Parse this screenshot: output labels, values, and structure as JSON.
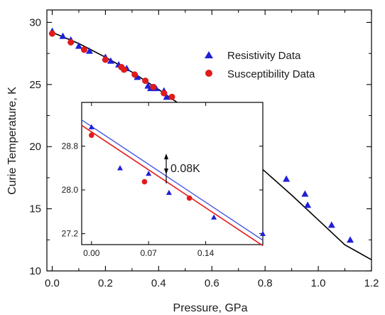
{
  "chart_data": {
    "type": "scatter",
    "xlabel": "Pressure, GPa",
    "ylabel": "Curie Temperature, K",
    "xlim": [
      -0.02,
      1.2
    ],
    "ylim": [
      10,
      31
    ],
    "x_ticks": [
      "0.0",
      "0.2",
      "0.4",
      "0.6",
      "0.8",
      "1.0",
      "1.2"
    ],
    "y_ticks": [
      "10",
      "15",
      "20",
      "25",
      "30"
    ],
    "legend_position": "top-right",
    "colors": {
      "resistivity": "#1f1fd6",
      "susceptibility": "#e01b1b",
      "fit": "#000000",
      "inset_blue": "#3a4fe0",
      "inset_red": "#e01b1b"
    },
    "series": [
      {
        "name": "Resistivity Data",
        "marker": "triangle",
        "color": "#1f1fd6",
        "points": [
          [
            0.0,
            29.3
          ],
          [
            0.04,
            28.9
          ],
          [
            0.07,
            28.6
          ],
          [
            0.1,
            28.1
          ],
          [
            0.14,
            27.7
          ],
          [
            0.2,
            27.2
          ],
          [
            0.22,
            26.9
          ],
          [
            0.25,
            26.6
          ],
          [
            0.28,
            26.3
          ],
          [
            0.32,
            25.6
          ],
          [
            0.36,
            24.9
          ],
          [
            0.37,
            24.7
          ],
          [
            0.39,
            24.7
          ],
          [
            0.42,
            24.5
          ],
          [
            0.43,
            24.0
          ],
          [
            0.48,
            23.2
          ],
          [
            0.52,
            23.0
          ],
          [
            0.53,
            22.6
          ],
          [
            0.63,
            21.3
          ],
          [
            0.7,
            20.3
          ],
          [
            0.88,
            17.4
          ],
          [
            0.95,
            16.2
          ],
          [
            0.96,
            15.3
          ],
          [
            1.05,
            13.7
          ],
          [
            1.12,
            12.5
          ]
        ]
      },
      {
        "name": "Susceptibility Data",
        "marker": "circle",
        "color": "#e01b1b",
        "points": [
          [
            0.0,
            29.1
          ],
          [
            0.07,
            28.4
          ],
          [
            0.12,
            27.8
          ],
          [
            0.2,
            27.0
          ],
          [
            0.26,
            26.4
          ],
          [
            0.27,
            26.2
          ],
          [
            0.31,
            25.8
          ],
          [
            0.35,
            25.3
          ],
          [
            0.38,
            24.8
          ],
          [
            0.42,
            24.3
          ],
          [
            0.45,
            24.0
          ],
          [
            0.51,
            23.0
          ],
          [
            0.55,
            22.6
          ],
          [
            0.77,
            19.3
          ]
        ]
      },
      {
        "name": "",
        "kind": "fit-line",
        "color": "#000000",
        "x": [
          0.0,
          0.1,
          0.2,
          0.3,
          0.4,
          0.5,
          0.6,
          0.7,
          0.8,
          0.9,
          1.0,
          1.1,
          1.2
        ],
        "y": [
          29.2,
          28.3,
          27.2,
          26.0,
          24.6,
          23.1,
          21.5,
          19.8,
          18.0,
          16.1,
          14.1,
          12.1,
          10.9
        ]
      }
    ],
    "inset": {
      "type": "scatter",
      "xlim": [
        -0.012,
        0.21
      ],
      "ylim": [
        27.0,
        29.6
      ],
      "x_ticks": [
        "0.00",
        "0.07",
        "0.14"
      ],
      "y_ticks": [
        "27.2",
        "28.0",
        "28.8"
      ],
      "annotation": "0.08K",
      "blue_line": [
        [
          -0.012,
          29.28
        ],
        [
          0.21,
          27.08
        ]
      ],
      "red_line": [
        [
          -0.012,
          29.18
        ],
        [
          0.21,
          26.98
        ]
      ],
      "annotation_arrow_x": 0.086,
      "triangles": [
        [
          0.0,
          29.15
        ],
        [
          0.035,
          28.4
        ],
        [
          0.07,
          28.3
        ],
        [
          0.095,
          27.95
        ],
        [
          0.15,
          27.5
        ],
        [
          0.21,
          27.2
        ]
      ],
      "circles": [
        [
          0.0,
          29.0
        ],
        [
          0.065,
          28.15
        ],
        [
          0.12,
          27.85
        ]
      ]
    }
  }
}
